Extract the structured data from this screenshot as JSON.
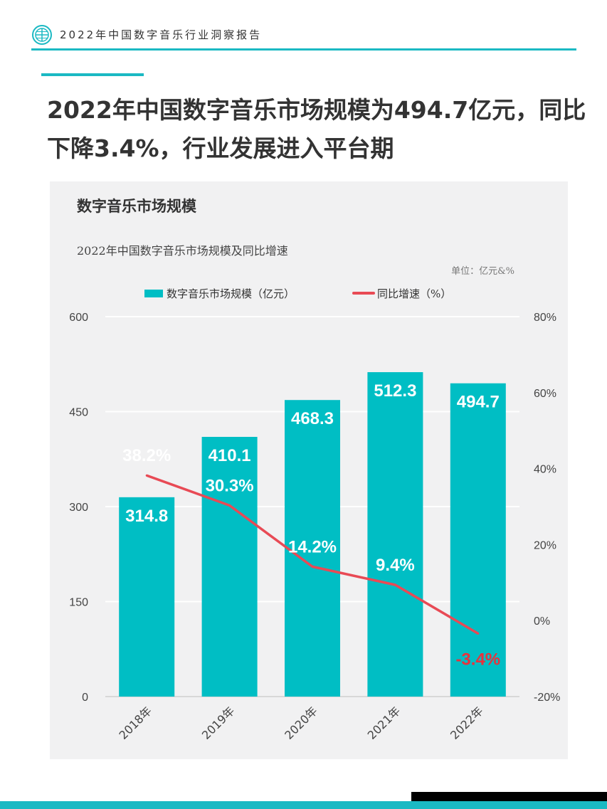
{
  "header": {
    "title": "2022年中国数字音乐行业洞察报告",
    "logo_icon": "globe-logo-icon"
  },
  "headline": "2022年中国数字音乐市场规模为494.7亿元，同比下降3.4%，行业发展进入平台期",
  "panel": {
    "title": "数字音乐市场规模",
    "chart_title": "2022年中国数字音乐市场规模及同比增速",
    "unit": "单位：亿元&%"
  },
  "colors": {
    "accent": "#1bb9c3",
    "bar": "#00bec4",
    "line": "#e84a55",
    "negative_label": "#e8323c"
  },
  "chart_data": {
    "type": "bar",
    "title": "2022年中国数字音乐市场规模及同比增速",
    "categories": [
      "2018年",
      "2019年",
      "2020年",
      "2021年",
      "2022年"
    ],
    "series": [
      {
        "name": "数字音乐市场规模（亿元）",
        "type": "bar",
        "axis": "left",
        "values": [
          314.8,
          410.1,
          468.3,
          512.3,
          494.7
        ],
        "labels": [
          "314.8",
          "410.1",
          "468.3",
          "512.3",
          "494.7"
        ]
      },
      {
        "name": "同比增速（%）",
        "type": "line",
        "axis": "right",
        "values": [
          38.2,
          30.3,
          14.2,
          9.4,
          -3.4
        ],
        "labels": [
          "38.2%",
          "30.3%",
          "14.2%",
          "9.4%",
          "-3.4%"
        ]
      }
    ],
    "y_left": {
      "min": 0,
      "max": 600,
      "ticks": [
        "0",
        "150",
        "300",
        "450",
        "600"
      ]
    },
    "y_right": {
      "min": -20,
      "max": 80,
      "ticks": [
        "-20%",
        "0%",
        "20%",
        "40%",
        "60%",
        "80%"
      ]
    },
    "grid": true,
    "legend": "top-center"
  }
}
